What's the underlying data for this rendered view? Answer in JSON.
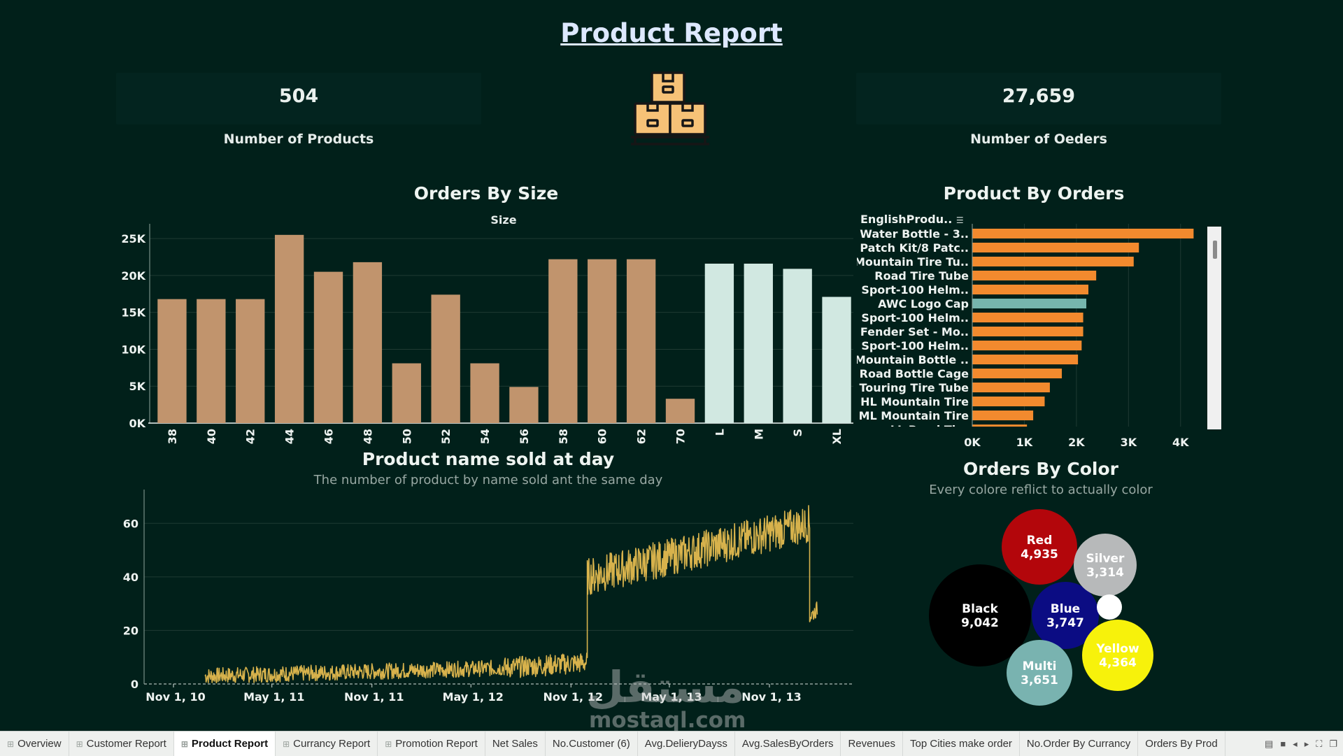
{
  "page": {
    "title": "Product Report"
  },
  "kpis": {
    "products_value": "504",
    "products_label": "Number of Products",
    "orders_value": "27,659",
    "orders_label": "Number of Oeders"
  },
  "icons": {
    "center": "boxes-on-pallet-icon"
  },
  "orders_by_size": {
    "title": "Orders By Size",
    "column_header": "Size",
    "chart_data": {
      "type": "bar",
      "categories": [
        "38",
        "40",
        "42",
        "44",
        "46",
        "48",
        "50",
        "52",
        "54",
        "56",
        "58",
        "60",
        "62",
        "70",
        "L",
        "M",
        "S",
        "XL"
      ],
      "values": [
        16800,
        16800,
        16800,
        25500,
        20500,
        21800,
        8100,
        17400,
        8100,
        4900,
        22200,
        22200,
        22200,
        3300,
        21600,
        21600,
        20900,
        17100
      ],
      "highlight": [
        "L",
        "M",
        "S",
        "XL"
      ],
      "ylim": [
        0,
        27000
      ],
      "yticks": [
        "0K",
        "5K",
        "10K",
        "15K",
        "20K",
        "25K"
      ],
      "grid": true,
      "colors": {
        "default": "#c1946d",
        "highlight": "#d1e8e1"
      }
    }
  },
  "product_by_orders": {
    "title": "Product By Orders",
    "column_header": "EnglishProdu..",
    "chart_data": {
      "type": "bar",
      "orientation": "horizontal",
      "categories": [
        "Water Bottle - 3..",
        "Patch Kit/8 Patc..",
        "Mountain Tire Tu..",
        "Road Tire Tube",
        "Sport-100 Helm..",
        "AWC Logo Cap",
        "Sport-100 Helm..",
        "Fender Set - Mo..",
        "Sport-100 Helm..",
        "Mountain Bottle ..",
        "Road Bottle Cage",
        "Touring Tire Tube",
        "HL Mountain Tire",
        "ML Mountain Tire",
        "LL Road Tire"
      ],
      "values": [
        4250,
        3200,
        3100,
        2380,
        2230,
        2190,
        2130,
        2130,
        2100,
        2030,
        1720,
        1490,
        1390,
        1170,
        1050
      ],
      "highlight": [
        "AWC Logo Cap"
      ],
      "xlim": [
        0,
        4500
      ],
      "xticks": [
        "0K",
        "1K",
        "2K",
        "3K",
        "4K"
      ],
      "grid": true,
      "colors": {
        "default": "#f28a2e",
        "highlight": "#76b5ad"
      }
    }
  },
  "product_sold_day": {
    "title": "Product name sold at day",
    "subtitle": "The number of product by name sold ant the same day",
    "chart_data": {
      "type": "line",
      "x_ticks": [
        "Nov 1, 10",
        "May 1, 11",
        "Nov 1, 11",
        "May 1, 12",
        "Nov 1, 12",
        "May 1, 13",
        "Nov 1, 13"
      ],
      "ylim": [
        0,
        70
      ],
      "yticks": [
        "0",
        "20",
        "40",
        "60"
      ],
      "x_range": [
        "Dec 29, 10",
        "Jan 28, 14"
      ],
      "grid": true,
      "color": "#d7b24c",
      "phases": [
        {
          "from": "Dec 29, 10",
          "to": "Jul 1, 12",
          "level_start": 3,
          "level_end": 6,
          "noise": 3
        },
        {
          "from": "Jul 1, 12",
          "to": "Dec 1, 12",
          "level_start": 6,
          "level_end": 8,
          "noise": 4
        },
        {
          "from": "Dec 1, 12",
          "to": "Jan 14, 14",
          "level_start": 40,
          "level_end": 60,
          "noise": 7
        },
        {
          "from": "Jan 14, 14",
          "to": "Jan 28, 14",
          "level_start": 25,
          "level_end": 28,
          "noise": 3
        }
      ]
    }
  },
  "orders_by_color": {
    "title": "Orders By Color",
    "subtitle": "Every colore reflict to actually color",
    "bubbles": [
      {
        "name": "Black",
        "value": "9,042",
        "color": "#000000",
        "text": "#ffffff"
      },
      {
        "name": "Red",
        "value": "4,935",
        "color": "#b3060b",
        "text": "#ffffff"
      },
      {
        "name": "Blue",
        "value": "3,747",
        "color": "#0b0c83",
        "text": "#ffffff"
      },
      {
        "name": "Multi",
        "value": "3,651",
        "color": "#79b3b0",
        "text": "#ffffff"
      },
      {
        "name": "Silver",
        "value": "3,314",
        "color": "#b7b9ba",
        "text": "#ffffff"
      },
      {
        "name": "Yellow",
        "value": "4,364",
        "color": "#f7f20b",
        "text": "#ffffff"
      },
      {
        "name": "",
        "value": "",
        "color": "#ffffff",
        "text": "#ffffff"
      }
    ]
  },
  "tabs": [
    {
      "label": "Overview",
      "icon": true
    },
    {
      "label": "Customer Report",
      "icon": true
    },
    {
      "label": "Product Report",
      "icon": true,
      "active": true
    },
    {
      "label": "Currancy Report",
      "icon": true
    },
    {
      "label": "Promotion Report",
      "icon": true
    },
    {
      "label": "Net Sales",
      "icon": false
    },
    {
      "label": "No.Customer (6)",
      "icon": false
    },
    {
      "label": "Avg.DelieryDayss",
      "icon": false
    },
    {
      "label": "Avg.SalesByOrders",
      "icon": false
    },
    {
      "label": "Revenues",
      "icon": false
    },
    {
      "label": "Top Cities make order",
      "icon": false
    },
    {
      "label": "No.Order By Currancy",
      "icon": false
    },
    {
      "label": "Orders By Prod",
      "icon": false
    }
  ],
  "watermark": {
    "arabic": "مستقل",
    "latin": "mostaql.com"
  }
}
